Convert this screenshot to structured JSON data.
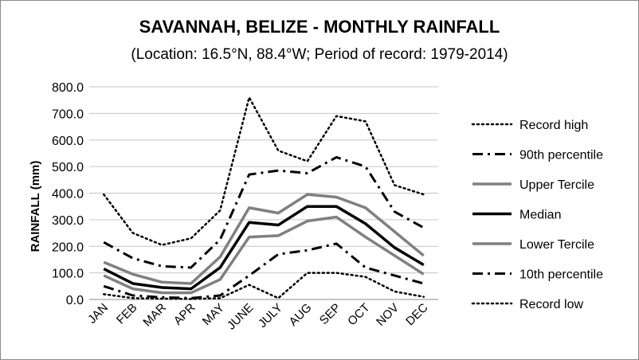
{
  "chart_data": {
    "type": "line",
    "title": "SAVANNAH, BELIZE - MONTHLY RAINFALL",
    "subtitle": "(Location: 16.5°N, 88.4°W; Period of record: 1979-2014)",
    "ylabel": "RAINFALL (mm)",
    "xlabel": "",
    "ylim": [
      0,
      800
    ],
    "yticks": [
      "0.0",
      "100.0",
      "200.0",
      "300.0",
      "400.0",
      "500.0",
      "600.0",
      "700.0",
      "800.0"
    ],
    "categories": [
      "JAN",
      "FEB",
      "MAR",
      "APR",
      "MAY",
      "JUNE",
      "JULY",
      "AUG",
      "SEP",
      "OCT",
      "NOV",
      "DEC"
    ],
    "grid": true,
    "legend_position": "right",
    "series": [
      {
        "name": "Record high",
        "color": "#000000",
        "style": "dotted",
        "values": [
          395,
          250,
          205,
          230,
          335,
          760,
          560,
          520,
          690,
          670,
          430,
          395
        ]
      },
      {
        "name": "90th percentile",
        "color": "#000000",
        "style": "dashdot",
        "values": [
          215,
          155,
          125,
          120,
          225,
          470,
          485,
          475,
          535,
          500,
          330,
          270
        ]
      },
      {
        "name": "Upper Tercile",
        "color": "#808080",
        "style": "solid",
        "values": [
          140,
          95,
          65,
          60,
          160,
          345,
          325,
          395,
          385,
          345,
          255,
          165
        ]
      },
      {
        "name": "Median",
        "color": "#000000",
        "style": "solid",
        "values": [
          115,
          60,
          45,
          40,
          120,
          290,
          280,
          350,
          350,
          285,
          195,
          130
        ]
      },
      {
        "name": "Lower Tercile",
        "color": "#808080",
        "style": "solid",
        "values": [
          90,
          40,
          25,
          25,
          75,
          235,
          240,
          295,
          310,
          235,
          165,
          95
        ]
      },
      {
        "name": "10th percentile",
        "color": "#000000",
        "style": "dashdot",
        "values": [
          50,
          15,
          8,
          5,
          15,
          90,
          170,
          185,
          210,
          120,
          90,
          60
        ]
      },
      {
        "name": "Record low",
        "color": "#000000",
        "style": "dotted",
        "values": [
          20,
          5,
          3,
          2,
          5,
          55,
          5,
          100,
          100,
          85,
          30,
          10
        ]
      }
    ]
  }
}
